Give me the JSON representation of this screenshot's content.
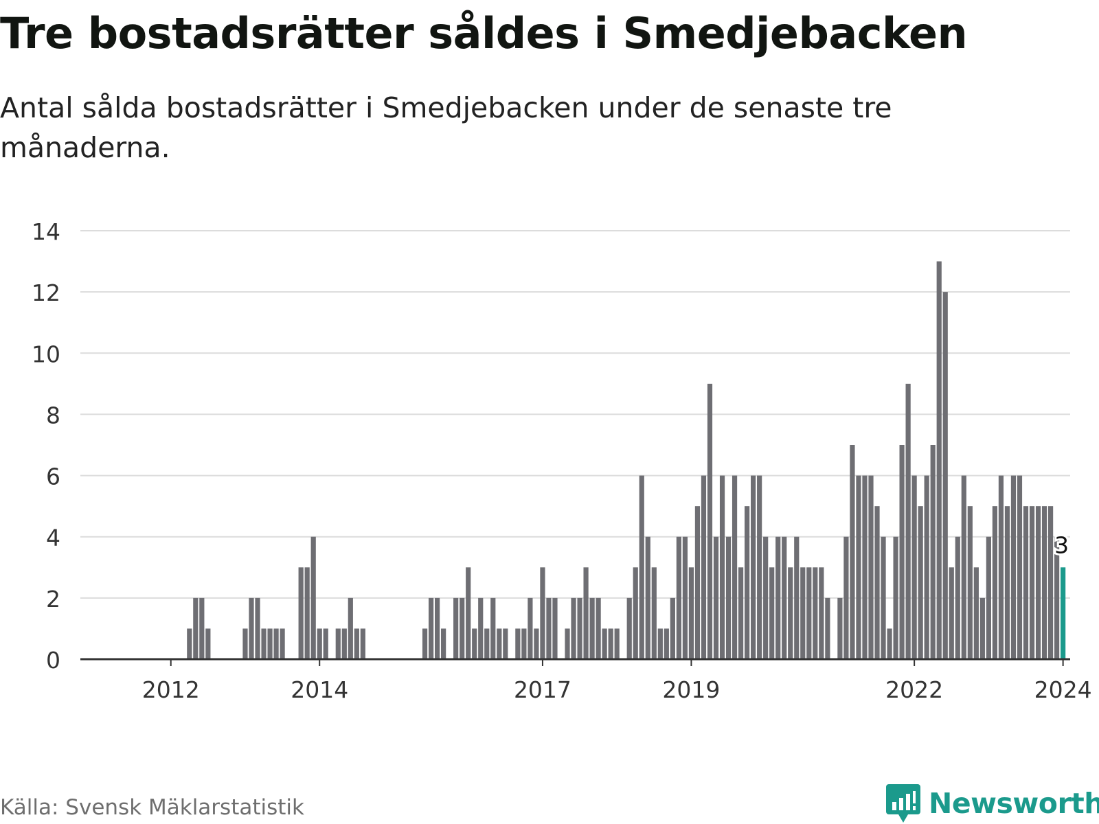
{
  "title": "Tre bostadsrätter såldes i Smedjebacken",
  "subtitle": "Antal sålda bostadsrätter i Smedjebacken under de senaste tre månaderna.",
  "source": "Källa: Svensk Mäklarstatistik",
  "brand": "Newsworthy",
  "colors": {
    "bar": "#6e6e73",
    "highlight": "#1b9a8c",
    "grid": "#dcdcdc",
    "axis": "#333333",
    "brand": "#1b9a8c"
  },
  "chart_data": {
    "type": "bar",
    "title": "Tre bostadsrätter såldes i Smedjebacken",
    "xlabel": "",
    "ylabel": "",
    "ylim": [
      0,
      14
    ],
    "yticks": [
      0,
      2,
      4,
      6,
      8,
      10,
      12,
      14
    ],
    "grid": true,
    "start": "2011-01",
    "x_tick_labels": [
      {
        "label": "2012",
        "index": 12
      },
      {
        "label": "2014",
        "index": 36
      },
      {
        "label": "2017",
        "index": 72
      },
      {
        "label": "2019",
        "index": 96
      },
      {
        "label": "2022",
        "index": 132
      },
      {
        "label": "2024",
        "index": 156
      }
    ],
    "highlight_index": 156,
    "highlight_label": "3",
    "values": [
      0,
      0,
      0,
      0,
      0,
      0,
      0,
      0,
      0,
      0,
      0,
      0,
      0,
      0,
      0,
      1,
      2,
      2,
      1,
      0,
      0,
      0,
      0,
      0,
      1,
      2,
      2,
      1,
      1,
      1,
      1,
      0,
      0,
      3,
      3,
      4,
      1,
      1,
      0,
      1,
      1,
      2,
      1,
      1,
      0,
      0,
      0,
      0,
      0,
      0,
      0,
      0,
      0,
      1,
      2,
      2,
      1,
      0,
      2,
      2,
      3,
      1,
      2,
      1,
      2,
      1,
      1,
      0,
      1,
      1,
      2,
      1,
      3,
      2,
      2,
      0,
      1,
      2,
      2,
      3,
      2,
      2,
      1,
      1,
      1,
      0,
      2,
      3,
      6,
      4,
      3,
      1,
      1,
      2,
      4,
      4,
      3,
      5,
      6,
      9,
      4,
      6,
      4,
      6,
      3,
      5,
      6,
      6,
      4,
      3,
      4,
      4,
      3,
      4,
      3,
      3,
      3,
      3,
      2,
      0,
      2,
      4,
      7,
      6,
      6,
      6,
      5,
      4,
      1,
      4,
      7,
      9,
      6,
      5,
      6,
      7,
      13,
      12,
      3,
      4,
      6,
      5,
      3,
      2,
      4,
      5,
      6,
      5,
      6,
      6,
      5,
      5,
      5,
      5,
      5,
      4,
      3
    ]
  }
}
